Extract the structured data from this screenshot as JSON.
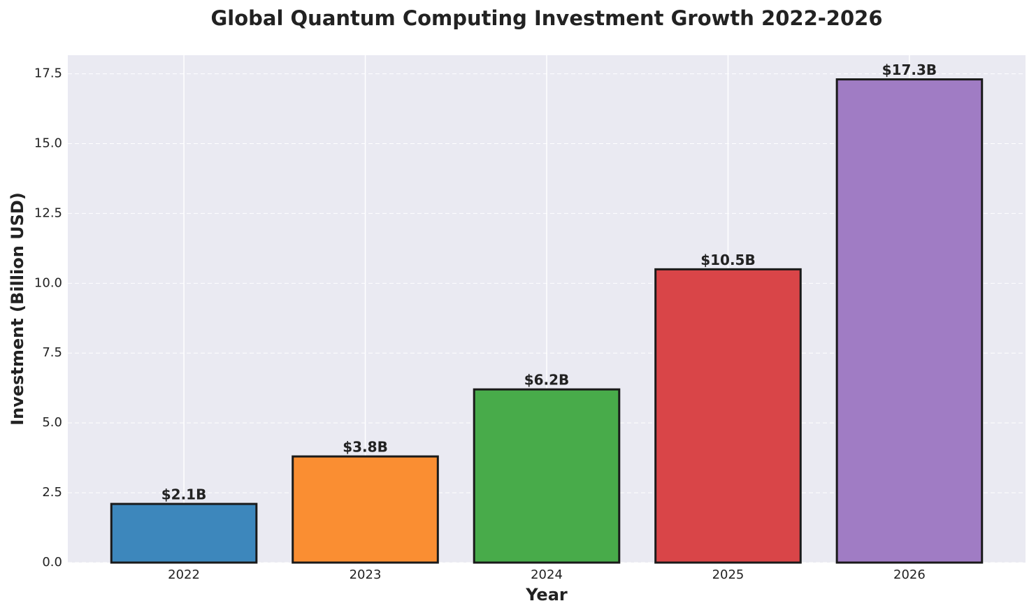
{
  "chart_data": {
    "type": "bar",
    "title": "Global Quantum Computing Investment Growth 2022-2026",
    "x_label": "Year",
    "y_label": "Investment (Billion USD)",
    "categories": [
      "2022",
      "2023",
      "2024",
      "2025",
      "2026"
    ],
    "values": [
      2.1,
      3.8,
      6.2,
      10.5,
      17.3
    ],
    "value_labels": [
      "$2.1B",
      "$3.8B",
      "$6.2B",
      "$10.5B",
      "$17.3B"
    ],
    "colors": [
      "#3d87bc",
      "#fa8e32",
      "#48ab4a",
      "#d94548",
      "#a07cc4"
    ],
    "ylim": [
      0,
      18.165
    ],
    "yticks": [
      {
        "value": 0,
        "label": "0.0"
      },
      2.5,
      {
        "value": 5,
        "label": "5.0"
      },
      7.5,
      {
        "value": 10,
        "label": "10.0"
      },
      12.5,
      {
        "value": 15,
        "label": "15.0"
      },
      17.5
    ],
    "grid": true
  }
}
